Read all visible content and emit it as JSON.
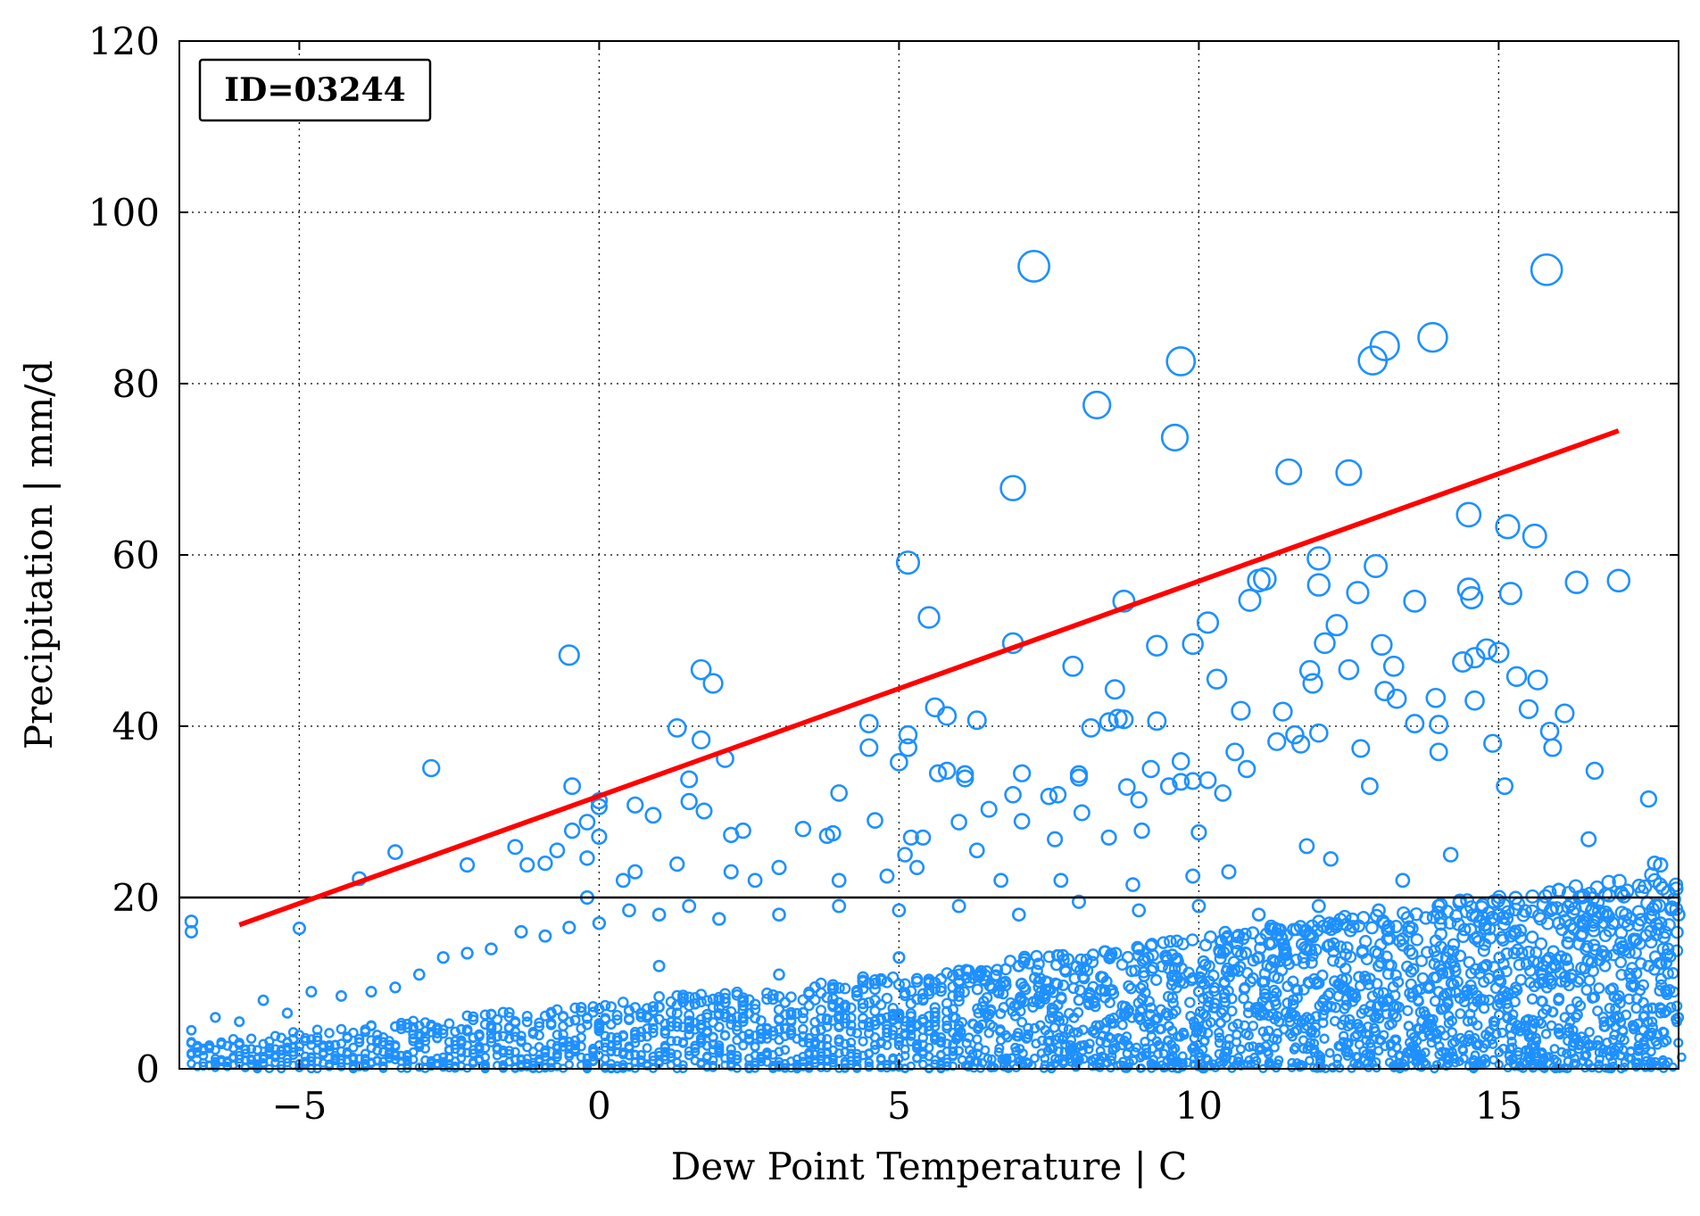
{
  "chart_data": {
    "type": "scatter",
    "id_label": "ID=03244",
    "xlabel": "Dew Point Temperature | C",
    "ylabel": "Precipitation | mm/d",
    "xlim": [
      -7,
      18
    ],
    "ylim": [
      0,
      120
    ],
    "xticks": [
      -5,
      0,
      5,
      10,
      15
    ],
    "xtick_labels": [
      "−5",
      "0",
      "5",
      "10",
      "15"
    ],
    "yticks": [
      0,
      20,
      40,
      60,
      80,
      100,
      120
    ],
    "ytick_labels": [
      "0",
      "20",
      "40",
      "60",
      "80",
      "100",
      "120"
    ],
    "grid": true,
    "grid_style": "dotted",
    "threshold_line": {
      "y": 20,
      "color": "#000000"
    },
    "trend_line": {
      "color": "#ff0000",
      "points": [
        [
          -6.0,
          16.8
        ],
        [
          17.0,
          74.5
        ]
      ]
    },
    "marker_color": "#1e90ff",
    "points": [
      [
        -6.8,
        17.2
      ],
      [
        -6.8,
        16.0
      ],
      [
        -5.0,
        16.4
      ],
      [
        -4.0,
        22.2
      ],
      [
        -3.4,
        25.3
      ],
      [
        -2.8,
        35.1
      ],
      [
        -2.2,
        23.8
      ],
      [
        -1.4,
        25.9
      ],
      [
        -1.2,
        23.8
      ],
      [
        -0.9,
        24.0
      ],
      [
        -0.7,
        25.5
      ],
      [
        -0.5,
        48.3
      ],
      [
        -0.45,
        33.0
      ],
      [
        -0.45,
        27.8
      ],
      [
        -0.2,
        28.8
      ],
      [
        -0.2,
        24.6
      ],
      [
        0.0,
        31.3
      ],
      [
        0.0,
        30.6
      ],
      [
        0.0,
        27.1
      ],
      [
        0.6,
        30.8
      ],
      [
        0.9,
        29.6
      ],
      [
        1.3,
        39.8
      ],
      [
        1.3,
        23.9
      ],
      [
        1.5,
        33.8
      ],
      [
        1.5,
        31.2
      ],
      [
        1.7,
        46.6
      ],
      [
        1.7,
        38.4
      ],
      [
        1.75,
        30.1
      ],
      [
        1.9,
        45.0
      ],
      [
        2.1,
        36.2
      ],
      [
        2.2,
        27.3
      ],
      [
        2.4,
        27.8
      ],
      [
        3.4,
        28.0
      ],
      [
        3.8,
        27.2
      ],
      [
        3.9,
        27.5
      ],
      [
        4.0,
        32.2
      ],
      [
        4.5,
        40.3
      ],
      [
        4.5,
        37.5
      ],
      [
        4.6,
        29.0
      ],
      [
        4.0,
        22.0
      ],
      [
        4.8,
        22.5
      ],
      [
        5.0,
        35.8
      ],
      [
        5.1,
        25.0
      ],
      [
        5.15,
        59.1
      ],
      [
        5.15,
        39.0
      ],
      [
        5.15,
        37.5
      ],
      [
        5.2,
        27.0
      ],
      [
        5.4,
        27.0
      ],
      [
        5.5,
        52.7
      ],
      [
        5.6,
        42.2
      ],
      [
        5.65,
        34.5
      ],
      [
        5.8,
        41.2
      ],
      [
        5.8,
        34.8
      ],
      [
        6.0,
        28.8
      ],
      [
        6.1,
        34.4
      ],
      [
        6.1,
        33.9
      ],
      [
        6.3,
        40.7
      ],
      [
        6.3,
        25.5
      ],
      [
        6.5,
        30.3
      ],
      [
        6.9,
        67.8
      ],
      [
        6.9,
        49.7
      ],
      [
        6.9,
        32.0
      ],
      [
        7.05,
        34.5
      ],
      [
        7.05,
        28.9
      ],
      [
        7.25,
        93.7
      ],
      [
        7.5,
        31.8
      ],
      [
        7.6,
        26.8
      ],
      [
        7.65,
        32.0
      ],
      [
        7.9,
        47.0
      ],
      [
        8.0,
        34.4
      ],
      [
        8.0,
        34.0
      ],
      [
        8.05,
        29.9
      ],
      [
        8.2,
        39.8
      ],
      [
        8.3,
        77.5
      ],
      [
        8.5,
        40.5
      ],
      [
        8.5,
        27.0
      ],
      [
        8.6,
        44.3
      ],
      [
        8.65,
        40.9
      ],
      [
        8.75,
        54.6
      ],
      [
        8.75,
        40.8
      ],
      [
        8.8,
        32.9
      ],
      [
        9.0,
        31.4
      ],
      [
        9.05,
        27.8
      ],
      [
        9.2,
        35.0
      ],
      [
        9.3,
        49.4
      ],
      [
        9.3,
        40.6
      ],
      [
        9.5,
        33.0
      ],
      [
        9.6,
        73.7
      ],
      [
        9.7,
        82.6
      ],
      [
        9.7,
        35.9
      ],
      [
        9.7,
        33.5
      ],
      [
        9.9,
        49.6
      ],
      [
        9.9,
        33.6
      ],
      [
        10.0,
        27.6
      ],
      [
        10.15,
        52.1
      ],
      [
        10.15,
        33.7
      ],
      [
        10.3,
        45.5
      ],
      [
        10.4,
        32.2
      ],
      [
        10.6,
        37.0
      ],
      [
        10.7,
        41.8
      ],
      [
        10.8,
        35.0
      ],
      [
        10.85,
        54.7
      ],
      [
        11.0,
        57.0
      ],
      [
        11.1,
        57.2
      ],
      [
        11.3,
        38.2
      ],
      [
        11.4,
        41.7
      ],
      [
        11.5,
        69.7
      ],
      [
        11.6,
        39.0
      ],
      [
        11.7,
        37.9
      ],
      [
        11.85,
        46.5
      ],
      [
        11.9,
        45.0
      ],
      [
        12.0,
        59.6
      ],
      [
        12.0,
        56.5
      ],
      [
        12.0,
        39.2
      ],
      [
        12.1,
        49.7
      ],
      [
        12.3,
        51.8
      ],
      [
        12.5,
        69.6
      ],
      [
        12.5,
        46.6
      ],
      [
        12.65,
        55.6
      ],
      [
        12.7,
        37.4
      ],
      [
        12.85,
        33.0
      ],
      [
        12.9,
        82.7
      ],
      [
        12.95,
        58.7
      ],
      [
        13.05,
        49.5
      ],
      [
        13.1,
        84.4
      ],
      [
        13.1,
        44.1
      ],
      [
        13.25,
        47.0
      ],
      [
        13.3,
        43.2
      ],
      [
        13.6,
        54.6
      ],
      [
        13.6,
        40.3
      ],
      [
        13.9,
        85.4
      ],
      [
        13.95,
        43.3
      ],
      [
        14.0,
        40.2
      ],
      [
        14.0,
        37.0
      ],
      [
        14.4,
        47.5
      ],
      [
        14.5,
        64.7
      ],
      [
        14.5,
        56.0
      ],
      [
        14.55,
        55.0
      ],
      [
        14.6,
        48.0
      ],
      [
        14.6,
        43.0
      ],
      [
        14.8,
        49.0
      ],
      [
        14.9,
        38.0
      ],
      [
        15.0,
        48.6
      ],
      [
        15.1,
        33.0
      ],
      [
        15.15,
        63.3
      ],
      [
        15.2,
        55.5
      ],
      [
        15.3,
        45.8
      ],
      [
        15.5,
        42.0
      ],
      [
        15.6,
        62.2
      ],
      [
        15.65,
        45.4
      ],
      [
        15.8,
        93.3
      ],
      [
        15.85,
        39.4
      ],
      [
        15.9,
        37.5
      ],
      [
        16.1,
        41.5
      ],
      [
        16.3,
        56.8
      ],
      [
        16.6,
        34.8
      ],
      [
        16.9,
        17.0
      ],
      [
        17.0,
        57.0
      ],
      [
        17.5,
        31.5
      ],
      [
        17.6,
        24.0
      ],
      [
        17.7,
        23.8
      ],
      [
        17.7,
        17.0
      ],
      [
        18.0,
        18.0
      ],
      [
        16.5,
        26.8
      ],
      [
        14.2,
        25.0
      ],
      [
        13.4,
        22.0
      ],
      [
        12.2,
        24.5
      ],
      [
        11.8,
        26.0
      ],
      [
        10.5,
        23.0
      ],
      [
        9.9,
        22.5
      ],
      [
        8.9,
        21.5
      ],
      [
        7.7,
        22.0
      ],
      [
        6.7,
        22.0
      ],
      [
        5.3,
        23.5
      ],
      [
        3.0,
        23.5
      ],
      [
        2.6,
        22.0
      ],
      [
        2.2,
        23.0
      ],
      [
        0.6,
        23.0
      ],
      [
        0.4,
        22.0
      ],
      [
        -0.2,
        20.0
      ],
      [
        -6.8,
        4.5
      ],
      [
        -6.8,
        3.0
      ],
      [
        -6.4,
        6.0
      ],
      [
        -6.0,
        5.5
      ],
      [
        -5.6,
        8.0
      ],
      [
        -5.2,
        6.5
      ],
      [
        -4.8,
        9.0
      ],
      [
        -4.3,
        8.5
      ],
      [
        -3.8,
        9.0
      ],
      [
        -3.4,
        9.5
      ],
      [
        -3.0,
        11.0
      ],
      [
        -2.6,
        13.0
      ],
      [
        -2.2,
        13.5
      ],
      [
        -1.8,
        14.0
      ],
      [
        -1.3,
        16.0
      ],
      [
        -0.9,
        15.5
      ],
      [
        -0.5,
        16.5
      ],
      [
        0.0,
        17.0
      ],
      [
        0.5,
        18.5
      ],
      [
        1.0,
        18.0
      ],
      [
        1.5,
        19.0
      ],
      [
        2.0,
        17.5
      ],
      [
        3.0,
        18.0
      ],
      [
        4.0,
        19.0
      ],
      [
        5.0,
        18.5
      ],
      [
        6.0,
        19.0
      ],
      [
        7.0,
        18.0
      ],
      [
        8.0,
        19.5
      ],
      [
        9.0,
        18.5
      ],
      [
        10.0,
        19.0
      ],
      [
        11.0,
        18.0
      ],
      [
        12.0,
        19.0
      ],
      [
        13.0,
        18.5
      ],
      [
        14.0,
        19.0
      ],
      [
        15.0,
        18.0
      ],
      [
        16.0,
        17.0
      ],
      [
        17.0,
        14.0
      ],
      [
        17.5,
        12.0
      ],
      [
        17.8,
        9.0
      ],
      [
        18.0,
        6.0
      ],
      [
        17.5,
        4.0
      ],
      [
        17.2,
        2.0
      ],
      [
        1.0,
        12.0
      ],
      [
        3.0,
        11.0
      ],
      [
        5.0,
        13.0
      ],
      [
        7.0,
        12.0
      ],
      [
        9.0,
        14.0
      ],
      [
        11.0,
        13.0
      ],
      [
        13.0,
        12.0
      ],
      [
        15.0,
        11.0
      ],
      [
        2.0,
        8.0
      ],
      [
        4.0,
        7.0
      ],
      [
        6.0,
        9.0
      ],
      [
        8.0,
        8.0
      ],
      [
        10.0,
        9.0
      ],
      [
        12.0,
        10.0
      ],
      [
        14.0,
        9.0
      ],
      [
        16.0,
        8.0
      ],
      [
        1.5,
        4.0
      ],
      [
        3.5,
        3.0
      ],
      [
        5.5,
        5.0
      ],
      [
        7.5,
        4.0
      ],
      [
        9.5,
        5.0
      ],
      [
        11.5,
        6.0
      ],
      [
        13.5,
        5.0
      ],
      [
        15.5,
        4.0
      ]
    ]
  }
}
